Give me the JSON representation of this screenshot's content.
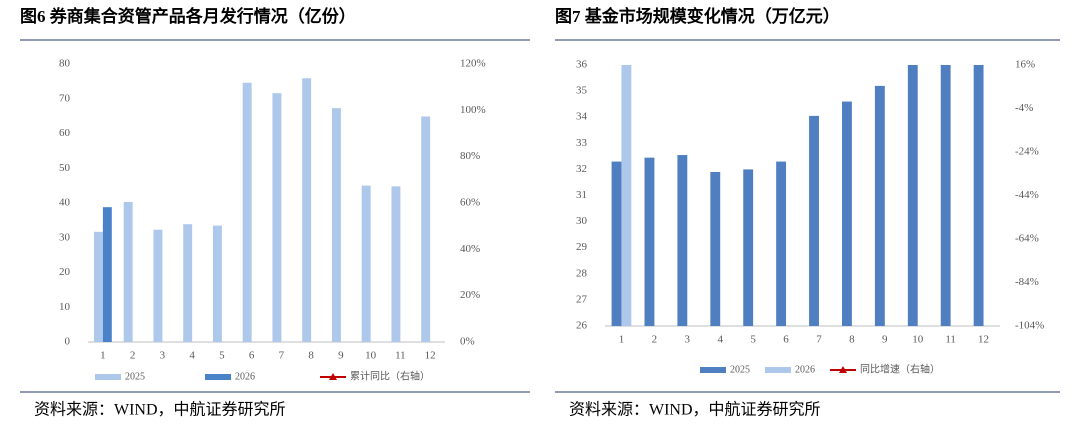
{
  "chart_data": [
    {
      "type": "bar",
      "title": "图6 券商集合资管产品各月发行情况（亿份）",
      "categories": [
        "1",
        "2",
        "3",
        "4",
        "5",
        "6",
        "7",
        "8",
        "9",
        "10",
        "11",
        "12"
      ],
      "series": [
        {
          "name": "2025",
          "color": "#adc8ea",
          "values": [
            31.7,
            40.3,
            32.3,
            33.9,
            33.5,
            74.6,
            71.6,
            75.9,
            67.3,
            45.0,
            44.8,
            64.9
          ]
        },
        {
          "name": "2026",
          "color": "#4a82c9",
          "values": [
            38.8,
            null,
            null,
            null,
            null,
            null,
            null,
            null,
            null,
            null,
            null,
            null
          ]
        },
        {
          "name": "累计同比（右轴）",
          "color": "#c00000",
          "axis": "y2",
          "values": [
            null,
            null,
            null,
            null,
            null,
            null,
            null,
            null,
            null,
            null,
            null,
            null
          ]
        }
      ],
      "ylim": [
        0,
        80
      ],
      "yticks": [
        0,
        10,
        20,
        30,
        40,
        50,
        60,
        70,
        80
      ],
      "y2lim": [
        0,
        120
      ],
      "y2ticks": [
        {
          "value": 0,
          "label": "0%"
        },
        {
          "value": 20,
          "label": "20%"
        },
        {
          "value": 40,
          "label": "40%"
        },
        {
          "value": 60,
          "label": "60%"
        },
        {
          "value": 80,
          "label": "80%"
        },
        {
          "value": 100,
          "label": "100%"
        },
        {
          "value": 120,
          "label": "120%"
        }
      ],
      "source": "资料来源：WIND，中航证券研究所"
    },
    {
      "type": "bar",
      "title": "图7 基金市场规模变化情况（万亿元）",
      "categories": [
        "1",
        "2",
        "3",
        "4",
        "5",
        "6",
        "7",
        "8",
        "9",
        "10",
        "11",
        "12"
      ],
      "series": [
        {
          "name": "2025",
          "color": "#4f7fc0",
          "values": [
            32.3,
            32.45,
            32.55,
            31.9,
            32.0,
            32.3,
            34.05,
            34.6,
            35.2,
            36,
            36,
            36
          ]
        },
        {
          "name": "2026",
          "color": "#adc8ea",
          "values": [
            36,
            null,
            null,
            null,
            null,
            null,
            null,
            null,
            null,
            null,
            null,
            null
          ]
        },
        {
          "name": "同比增速（右轴）",
          "color": "#c00000",
          "axis": "y2",
          "values": [
            null,
            null,
            null,
            null,
            null,
            null,
            null,
            null,
            null,
            null,
            null,
            null
          ]
        }
      ],
      "ylim": [
        26,
        36
      ],
      "yticks": [
        26,
        27,
        28,
        29,
        30,
        31,
        32,
        33,
        34,
        35,
        36
      ],
      "y2lim": [
        -104,
        16
      ],
      "y2ticks": [
        {
          "value": -104,
          "label": "-104%"
        },
        {
          "value": -84,
          "label": "-84%"
        },
        {
          "value": -64,
          "label": "-64%"
        },
        {
          "value": -44,
          "label": "-44%"
        },
        {
          "value": -24,
          "label": "-24%"
        },
        {
          "value": -4,
          "label": "-4%"
        },
        {
          "value": 16,
          "label": "16%"
        }
      ],
      "source": "资料来源：WIND，中航证券研究所"
    }
  ]
}
